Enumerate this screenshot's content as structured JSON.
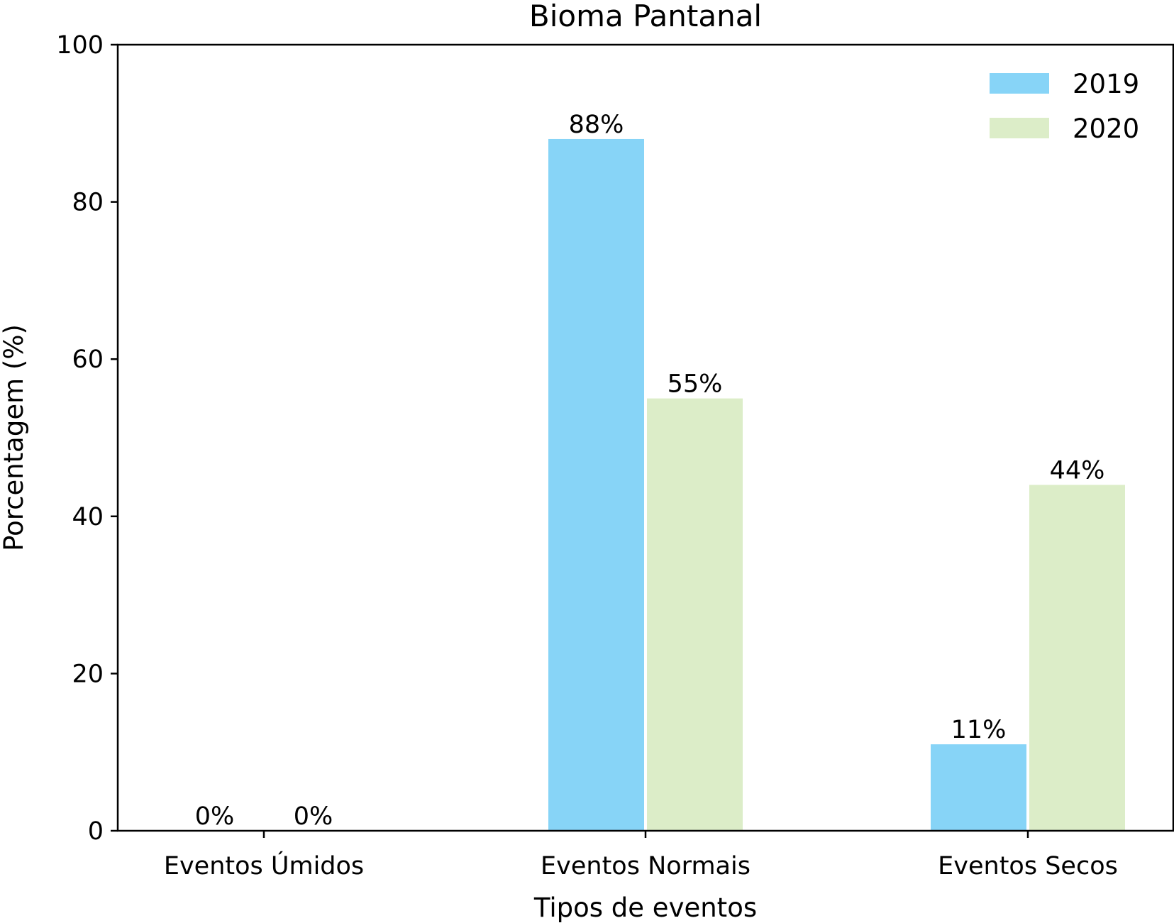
{
  "chart_data": {
    "type": "bar",
    "title": "Bioma Pantanal",
    "xlabel": "Tipos de eventos",
    "ylabel": "Porcentagem (%)",
    "categories": [
      "Eventos Úmidos",
      "Eventos Normais",
      "Eventos Secos"
    ],
    "ylim": [
      0,
      100
    ],
    "yticks": [
      0,
      20,
      40,
      60,
      80,
      100
    ],
    "grid": false,
    "legend_position": "top-right",
    "series": [
      {
        "name": "2019",
        "values": [
          0,
          88,
          11
        ],
        "labels": [
          "0%",
          "88%",
          "11%"
        ],
        "color": "#87d4f7"
      },
      {
        "name": "2020",
        "values": [
          0,
          55,
          44
        ],
        "labels": [
          "0%",
          "55%",
          "44%"
        ],
        "color": "#dcedc8"
      }
    ]
  }
}
